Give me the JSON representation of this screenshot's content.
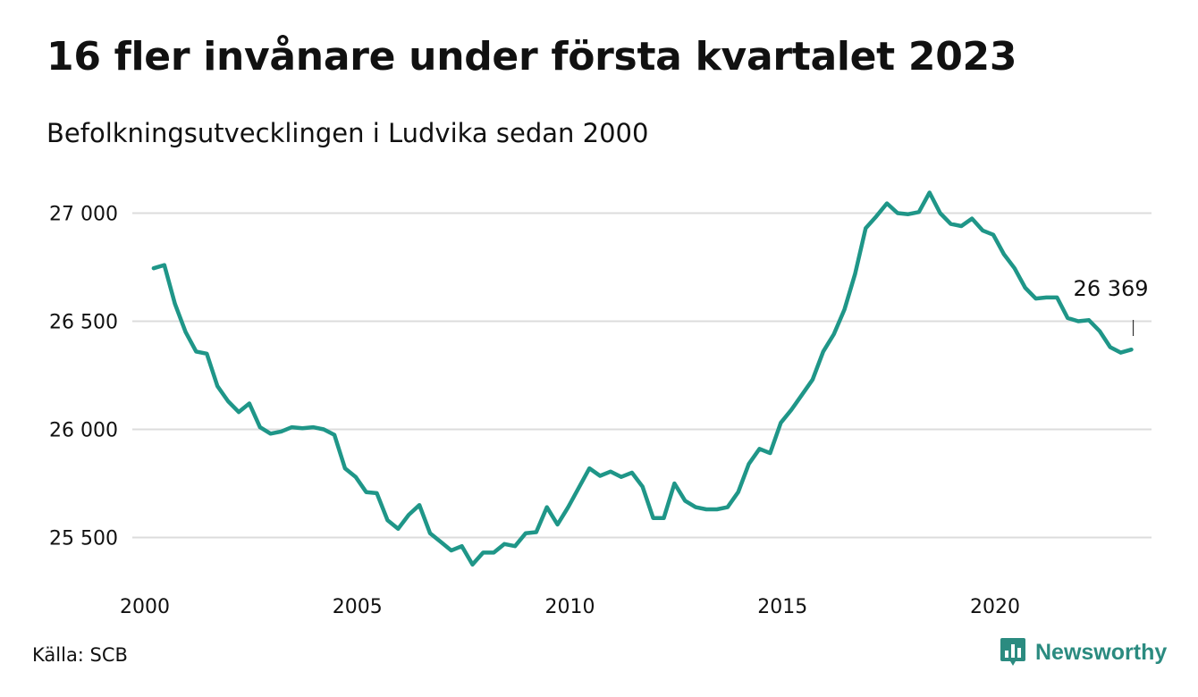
{
  "title": "16 fler invånare under första kvartalet 2023",
  "subtitle": "Befolkningsutvecklingen i Ludvika sedan 2000",
  "source": "Källa: SCB",
  "brand": {
    "name": "Newsworthy",
    "color": "#2b8b80",
    "icon": "bar-chart-speech-bubble-icon"
  },
  "colors": {
    "line": "#1f9688",
    "grid": "#dcdcdc",
    "text": "#111111"
  },
  "chart_data": {
    "type": "line",
    "title": "16 fler invånare under första kvartalet 2023",
    "subtitle": "Befolkningsutvecklingen i Ludvika sedan 2000",
    "xlabel": "",
    "ylabel": "",
    "xlim": [
      2000,
      2023.5
    ],
    "ylim": [
      25360,
      27110
    ],
    "x_ticks": [
      2000,
      2005,
      2010,
      2015,
      2020
    ],
    "x_tick_labels": [
      "2000",
      "2005",
      "2010",
      "2015",
      "2020"
    ],
    "y_ticks": [
      25500,
      26000,
      26500,
      27000
    ],
    "y_tick_labels": [
      "25 500",
      "26 000",
      "26 500",
      "27 000"
    ],
    "grid": "horizontal",
    "annotation": {
      "x": 2023.25,
      "y": 26369,
      "label": "26 369"
    },
    "series": [
      {
        "x": [
          2000.25,
          2000.5,
          2000.75,
          2001.0,
          2001.25,
          2001.5,
          2001.75,
          2002.0,
          2002.25,
          2002.5,
          2002.75,
          2003.0,
          2003.25,
          2003.5,
          2003.75,
          2004.0,
          2004.25,
          2004.5,
          2004.75,
          2005.0,
          2005.25,
          2005.5,
          2005.75,
          2006.0,
          2006.25,
          2006.5,
          2006.75,
          2007.0,
          2007.25,
          2007.5,
          2007.75,
          2008.0,
          2008.25,
          2008.5,
          2008.75,
          2009.0,
          2009.25,
          2009.5,
          2009.75,
          2010.0,
          2010.25,
          2010.5,
          2010.75,
          2011.0,
          2011.25,
          2011.5,
          2011.75,
          2012.0,
          2012.25,
          2012.5,
          2012.75,
          2013.0,
          2013.25,
          2013.5,
          2013.75,
          2014.0,
          2014.25,
          2014.5,
          2014.75,
          2015.0,
          2015.25,
          2015.5,
          2015.75,
          2016.0,
          2016.25,
          2016.5,
          2016.75,
          2017.0,
          2017.25,
          2017.5,
          2017.75,
          2018.0,
          2018.25,
          2018.5,
          2018.75,
          2019.0,
          2019.25,
          2019.5,
          2019.75,
          2020.0,
          2020.25,
          2020.5,
          2020.75,
          2021.0,
          2021.25,
          2021.5,
          2021.75,
          2022.0,
          2022.25,
          2022.5,
          2022.75,
          2023.0,
          2023.25
        ],
        "values": [
          26745,
          26760,
          26580,
          26450,
          26360,
          26350,
          26200,
          26130,
          26080,
          26120,
          26010,
          25980,
          25990,
          26010,
          26005,
          26010,
          26000,
          25975,
          25820,
          25780,
          25710,
          25705,
          25580,
          25540,
          25605,
          25650,
          25520,
          25480,
          25440,
          25460,
          25375,
          25430,
          25430,
          25470,
          25460,
          25520,
          25525,
          25640,
          25560,
          25640,
          25730,
          25820,
          25785,
          25805,
          25780,
          25800,
          25735,
          25590,
          25590,
          25750,
          25670,
          25640,
          25630,
          25630,
          25640,
          25710,
          25840,
          25910,
          25890,
          26030,
          26090,
          26160,
          26230,
          26360,
          26440,
          26555,
          26720,
          26930,
          26985,
          27045,
          27000,
          26995,
          27005,
          27095,
          27000,
          26950,
          26940,
          26975,
          26920,
          26900,
          26810,
          26745,
          26655,
          26605,
          26610,
          26610,
          26515,
          26500,
          26505,
          26455,
          26380,
          26355,
          26369
        ]
      }
    ]
  }
}
